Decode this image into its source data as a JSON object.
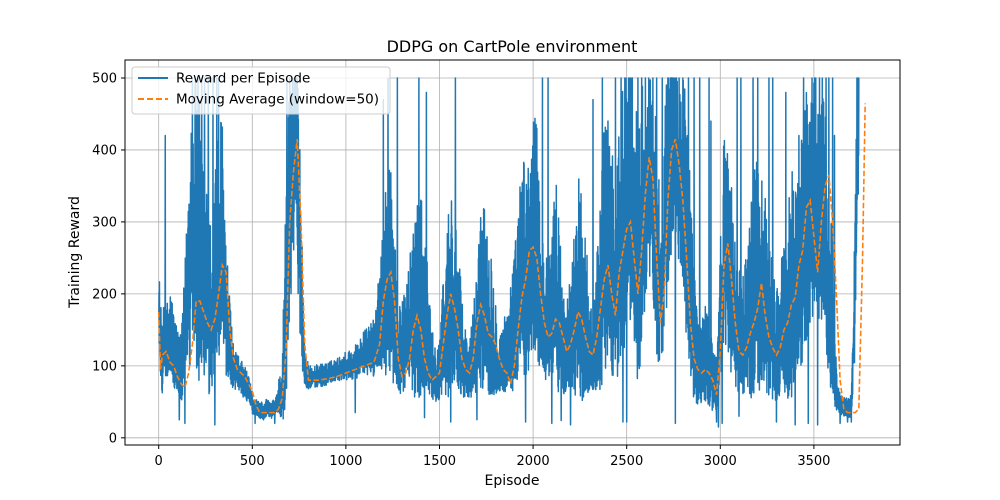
{
  "chart_data": {
    "type": "line",
    "title": "DDPG on CartPole environment",
    "xlabel": "Episode",
    "ylabel": "Training Reward",
    "xlim": [
      -180,
      3960
    ],
    "ylim": [
      -10,
      525
    ],
    "xticks": [
      0,
      500,
      1000,
      1500,
      2000,
      2500,
      3000,
      3500
    ],
    "yticks": [
      0,
      100,
      200,
      300,
      400,
      500
    ],
    "grid": true,
    "legend_position": "top-left",
    "series": [
      {
        "name": "Reward per Episode",
        "color": "#1f77b4",
        "style": "solid",
        "anchor_x": [
          0,
          10,
          20,
          30,
          40,
          60,
          80,
          100,
          120,
          140,
          160,
          180,
          200,
          220,
          240,
          260,
          280,
          300,
          320,
          340,
          360,
          380,
          400,
          420,
          440,
          460,
          480,
          500,
          520,
          540,
          560,
          580,
          600,
          620,
          640,
          660,
          680,
          700,
          720,
          740,
          760,
          780,
          800,
          850,
          900,
          950,
          1000,
          1050,
          1100,
          1150,
          1200,
          1220,
          1240,
          1260,
          1280,
          1300,
          1320,
          1340,
          1360,
          1380,
          1400,
          1420,
          1440,
          1460,
          1480,
          1500,
          1520,
          1540,
          1560,
          1580,
          1600,
          1620,
          1640,
          1660,
          1680,
          1700,
          1720,
          1740,
          1760,
          1780,
          1800,
          1820,
          1840,
          1860,
          1880,
          1900,
          1920,
          1940,
          1960,
          1980,
          2000,
          2020,
          2040,
          2060,
          2080,
          2100,
          2120,
          2140,
          2160,
          2180,
          2200,
          2220,
          2240,
          2260,
          2280,
          2300,
          2320,
          2340,
          2360,
          2380,
          2400,
          2420,
          2440,
          2460,
          2480,
          2500,
          2520,
          2540,
          2560,
          2580,
          2600,
          2620,
          2640,
          2660,
          2680,
          2700,
          2720,
          2740,
          2760,
          2780,
          2800,
          2820,
          2840,
          2860,
          2880,
          2900,
          2920,
          2940,
          2960,
          2980,
          3000,
          3020,
          3040,
          3060,
          3080,
          3100,
          3120,
          3140,
          3160,
          3180,
          3200,
          3220,
          3240,
          3260,
          3280,
          3300,
          3320,
          3340,
          3360,
          3380,
          3400,
          3420,
          3440,
          3460,
          3480,
          3500,
          3520,
          3540,
          3560,
          3580,
          3600,
          3620,
          3640,
          3660,
          3680,
          3700,
          3720,
          3740,
          3760,
          3775
        ],
        "anchor_y": [
          175,
          120,
          95,
          150,
          110,
          140,
          110,
          95,
          80,
          140,
          200,
          260,
          240,
          220,
          180,
          170,
          140,
          200,
          230,
          260,
          150,
          110,
          90,
          85,
          80,
          70,
          60,
          45,
          40,
          35,
          35,
          40,
          35,
          40,
          50,
          60,
          150,
          300,
          380,
          360,
          200,
          95,
          80,
          82,
          85,
          90,
          95,
          100,
          110,
          115,
          170,
          190,
          200,
          150,
          100,
          110,
          120,
          140,
          150,
          170,
          180,
          160,
          120,
          90,
          80,
          90,
          120,
          150,
          170,
          160,
          140,
          110,
          90,
          85,
          100,
          130,
          160,
          170,
          150,
          130,
          110,
          90,
          100,
          110,
          120,
          140,
          170,
          190,
          200,
          210,
          240,
          230,
          180,
          150,
          140,
          160,
          170,
          150,
          120,
          110,
          130,
          150,
          170,
          160,
          140,
          120,
          110,
          130,
          180,
          220,
          240,
          200,
          180,
          220,
          250,
          300,
          310,
          260,
          200,
          250,
          330,
          350,
          300,
          230,
          180,
          250,
          330,
          380,
          400,
          360,
          320,
          250,
          180,
          120,
          90,
          95,
          100,
          90,
          70,
          60,
          150,
          240,
          220,
          180,
          140,
          130,
          120,
          140,
          160,
          170,
          190,
          180,
          160,
          140,
          120,
          110,
          120,
          140,
          150,
          170,
          190,
          200,
          230,
          260,
          280,
          300,
          300,
          290,
          260,
          200,
          120,
          60,
          45,
          40,
          40,
          40,
          200,
          470
        ],
        "noise": [
          70,
          70,
          60,
          90,
          70,
          80,
          70,
          60,
          60,
          100,
          200,
          250,
          250,
          250,
          200,
          200,
          150,
          200,
          200,
          200,
          130,
          80,
          40,
          30,
          30,
          30,
          25,
          20,
          15,
          15,
          15,
          15,
          15,
          15,
          30,
          60,
          200,
          220,
          200,
          220,
          150,
          40,
          20,
          20,
          20,
          20,
          25,
          30,
          40,
          50,
          120,
          200,
          200,
          150,
          80,
          80,
          90,
          120,
          150,
          200,
          200,
          150,
          100,
          60,
          50,
          60,
          100,
          150,
          200,
          150,
          120,
          90,
          60,
          50,
          80,
          120,
          150,
          200,
          150,
          120,
          90,
          60,
          60,
          80,
          100,
          120,
          150,
          200,
          200,
          200,
          220,
          200,
          150,
          120,
          100,
          150,
          200,
          150,
          100,
          80,
          100,
          150,
          200,
          180,
          150,
          100,
          80,
          120,
          200,
          220,
          220,
          200,
          180,
          220,
          250,
          250,
          250,
          250,
          220,
          250,
          220,
          200,
          220,
          200,
          150,
          200,
          220,
          200,
          180,
          200,
          220,
          220,
          180,
          120,
          80,
          80,
          90,
          80,
          60,
          50,
          120,
          200,
          200,
          180,
          130,
          110,
          100,
          130,
          180,
          200,
          200,
          200,
          180,
          150,
          120,
          100,
          110,
          140,
          160,
          200,
          220,
          220,
          220,
          220,
          220,
          220,
          220,
          220,
          220,
          200,
          120,
          40,
          20,
          20,
          20,
          20,
          150,
          180
        ],
        "peak_x": [
          35,
          180,
          195,
          210,
          230,
          245,
          265,
          290,
          310,
          320,
          685,
          700,
          715,
          725,
          740,
          1200,
          1225,
          1275,
          1390,
          1430,
          1585,
          1700,
          2020,
          2050,
          2080,
          2320,
          2370,
          2400,
          2440,
          2470,
          2490,
          2530,
          2560,
          2580,
          2600,
          2640,
          2660,
          2690,
          2720,
          2760,
          2780,
          2800,
          2830,
          2860,
          2890,
          2940,
          2950,
          2980,
          3090,
          3110,
          3175,
          3200,
          3260,
          3280,
          3300,
          3350,
          3420,
          3445,
          3470,
          3490,
          3510,
          3530,
          3545,
          3565,
          3580,
          3600,
          3610,
          3730,
          3755,
          3770
        ],
        "peak_y": [
          420,
          500,
          500,
          500,
          500,
          500,
          500,
          500,
          500,
          500,
          500,
          500,
          500,
          500,
          500,
          470,
          500,
          500,
          500,
          480,
          500,
          470,
          430,
          500,
          500,
          470,
          500,
          440,
          500,
          500,
          500,
          500,
          500,
          500,
          500,
          500,
          500,
          500,
          500,
          500,
          500,
          500,
          500,
          500,
          500,
          500,
          440,
          470,
          500,
          500,
          500,
          500,
          500,
          500,
          500,
          480,
          420,
          500,
          500,
          500,
          500,
          500,
          500,
          500,
          500,
          500,
          420,
          500,
          500,
          500
        ],
        "trough_x": [
          110,
          140,
          300,
          515,
          560,
          620,
          1050,
          1420,
          1560,
          1700,
          1960,
          2100,
          2150,
          2200,
          2480,
          2500,
          2760,
          2980,
          2990,
          3010,
          3100,
          3300,
          3400,
          3470,
          3520,
          3640,
          3680,
          3700
        ],
        "trough_y": [
          25,
          20,
          18,
          20,
          25,
          20,
          35,
          28,
          22,
          25,
          22,
          20,
          24,
          18,
          22,
          22,
          20,
          22,
          15,
          20,
          30,
          22,
          18,
          20,
          18,
          20,
          22,
          22
        ]
      },
      {
        "name": "Moving Average (window=50)",
        "color": "#ff7f0e",
        "style": "dashed",
        "anchor_x": [
          0,
          10,
          20,
          40,
          60,
          80,
          100,
          120,
          140,
          160,
          180,
          200,
          220,
          240,
          260,
          280,
          300,
          320,
          340,
          360,
          380,
          400,
          420,
          440,
          460,
          480,
          500,
          520,
          540,
          560,
          580,
          600,
          620,
          640,
          660,
          680,
          700,
          720,
          740,
          760,
          780,
          800,
          850,
          900,
          950,
          1000,
          1050,
          1100,
          1150,
          1180,
          1200,
          1220,
          1240,
          1260,
          1280,
          1300,
          1320,
          1340,
          1360,
          1380,
          1400,
          1420,
          1440,
          1460,
          1480,
          1500,
          1520,
          1540,
          1560,
          1580,
          1600,
          1620,
          1640,
          1660,
          1680,
          1700,
          1720,
          1740,
          1760,
          1780,
          1800,
          1820,
          1840,
          1860,
          1880,
          1900,
          1920,
          1940,
          1960,
          1980,
          2000,
          2020,
          2040,
          2060,
          2080,
          2100,
          2120,
          2140,
          2160,
          2180,
          2200,
          2220,
          2240,
          2260,
          2280,
          2300,
          2320,
          2340,
          2360,
          2380,
          2400,
          2420,
          2440,
          2460,
          2480,
          2500,
          2520,
          2540,
          2560,
          2580,
          2600,
          2620,
          2640,
          2660,
          2680,
          2700,
          2720,
          2740,
          2760,
          2780,
          2800,
          2820,
          2840,
          2860,
          2880,
          2900,
          2920,
          2940,
          2960,
          2980,
          3000,
          3020,
          3040,
          3060,
          3080,
          3100,
          3120,
          3140,
          3160,
          3180,
          3200,
          3220,
          3240,
          3260,
          3280,
          3300,
          3320,
          3340,
          3360,
          3380,
          3400,
          3420,
          3440,
          3460,
          3480,
          3500,
          3520,
          3540,
          3560,
          3580,
          3600,
          3620,
          3640,
          3660,
          3680,
          3700,
          3720,
          3740,
          3760,
          3775
        ],
        "anchor_y": [
          175,
          95,
          115,
          120,
          105,
          100,
          85,
          75,
          70,
          90,
          130,
          190,
          190,
          175,
          160,
          150,
          165,
          200,
          240,
          230,
          150,
          110,
          95,
          90,
          85,
          75,
          65,
          45,
          35,
          35,
          35,
          35,
          35,
          40,
          55,
          120,
          300,
          370,
          415,
          300,
          130,
          80,
          80,
          82,
          85,
          90,
          95,
          100,
          105,
          130,
          190,
          220,
          230,
          190,
          110,
          85,
          90,
          110,
          150,
          170,
          150,
          110,
          90,
          80,
          85,
          90,
          130,
          170,
          200,
          180,
          150,
          110,
          95,
          90,
          110,
          160,
          185,
          170,
          145,
          140,
          130,
          110,
          95,
          90,
          75,
          100,
          150,
          195,
          220,
          260,
          265,
          250,
          200,
          160,
          140,
          145,
          165,
          160,
          140,
          120,
          130,
          150,
          175,
          165,
          140,
          120,
          115,
          140,
          180,
          220,
          240,
          200,
          170,
          230,
          260,
          290,
          300,
          250,
          200,
          260,
          340,
          390,
          360,
          250,
          160,
          200,
          330,
          400,
          415,
          380,
          330,
          250,
          160,
          110,
          95,
          90,
          95,
          90,
          80,
          60,
          120,
          240,
          270,
          220,
          160,
          120,
          115,
          125,
          145,
          160,
          180,
          215,
          170,
          140,
          125,
          115,
          125,
          150,
          160,
          185,
          195,
          240,
          260,
          320,
          330,
          280,
          230,
          300,
          350,
          365,
          300,
          200,
          80,
          40,
          35,
          35,
          35,
          40,
          250,
          480
        ]
      }
    ]
  }
}
